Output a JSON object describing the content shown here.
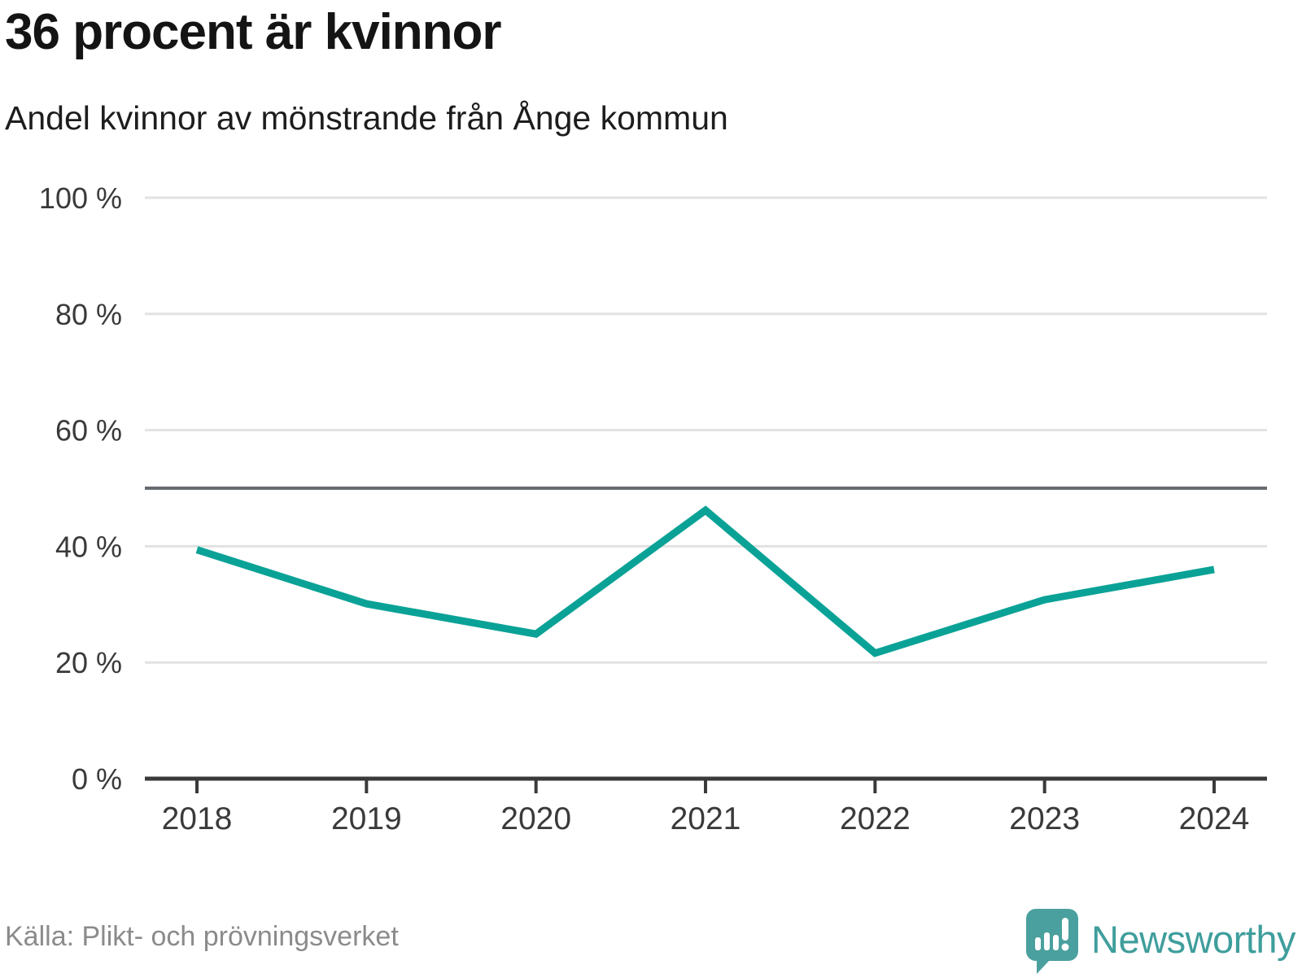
{
  "header": {
    "title": "36 procent är kvinnor",
    "subtitle": "Andel kvinnor av mönstrande från Ånge kommun"
  },
  "chart_data": {
    "type": "line",
    "x": [
      2018,
      2019,
      2020,
      2021,
      2022,
      2023,
      2024
    ],
    "series": [
      {
        "name": "Andel kvinnor",
        "values": [
          39.4,
          30.1,
          24.9,
          46.2,
          21.6,
          30.8,
          36.0
        ]
      }
    ],
    "title": "36 procent är kvinnor",
    "subtitle": "Andel kvinnor av mönstrande från Ånge kommun",
    "xlabel": "",
    "ylabel": "",
    "ylim": [
      0,
      100
    ],
    "yticks": [
      0,
      20,
      40,
      60,
      80,
      100
    ],
    "ytick_suffix": " %",
    "reference_line": 50,
    "grid": true,
    "legend": "none",
    "line_color": "#0aa296",
    "grid_color": "#e2e2e2",
    "axis_color": "#3a3a3a",
    "reference_color": "#676b6f",
    "tick_label_color": "#3a3a3a"
  },
  "footer": {
    "source": "Källa: Plikt- och prövningsverket",
    "brand": "Newsworthy"
  },
  "icons": {
    "logo": "newsworthy-speech-bubble-bar-chart-icon"
  },
  "colors": {
    "accent_teal": "#0aa296",
    "brand_teal": "#4aa09e",
    "title_text": "#141414",
    "muted_text": "#8b8b8b"
  }
}
